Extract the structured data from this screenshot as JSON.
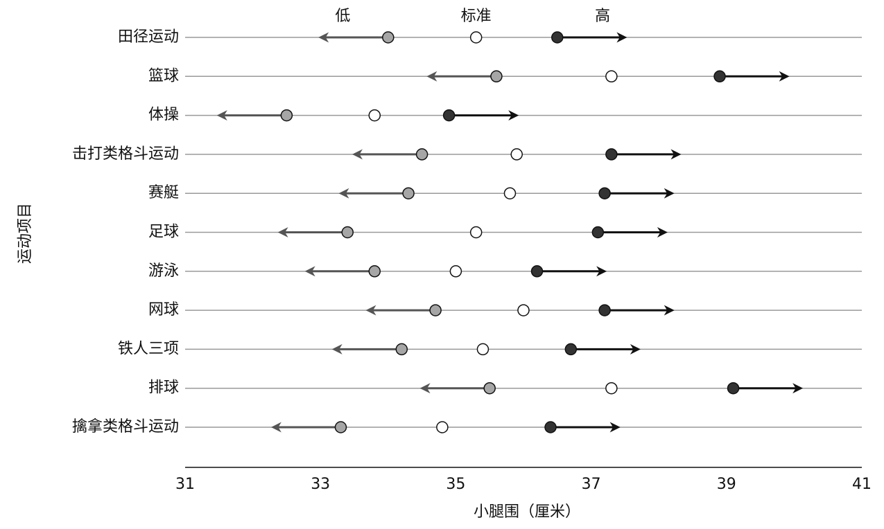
{
  "chart_data": {
    "type": "dot",
    "categories": [
      "田径运动",
      "篮球",
      "体操",
      "击打类格斗运动",
      "赛艇",
      "足球",
      "游泳",
      "网球",
      "铁人三项",
      "排球",
      "擒拿类格斗运动"
    ],
    "series": [
      {
        "name": "低",
        "color": "#a6a6a6",
        "values": [
          34.0,
          35.6,
          32.5,
          34.5,
          34.3,
          33.4,
          33.8,
          34.7,
          34.2,
          35.5,
          33.3
        ]
      },
      {
        "name": "标准",
        "color": "#ffffff",
        "values": [
          35.3,
          37.3,
          33.8,
          35.9,
          35.8,
          35.3,
          35.0,
          36.0,
          35.4,
          37.3,
          34.8
        ]
      },
      {
        "name": "高",
        "color": "#333333",
        "values": [
          36.5,
          38.9,
          34.9,
          37.3,
          37.2,
          37.1,
          36.2,
          37.2,
          36.7,
          39.1,
          36.4
        ]
      }
    ],
    "xlim": [
      31,
      41
    ],
    "xticks": [
      31,
      33,
      35,
      37,
      39,
      41
    ],
    "x_label": "小腿围（厘米）",
    "y_label": "运动项目"
  }
}
